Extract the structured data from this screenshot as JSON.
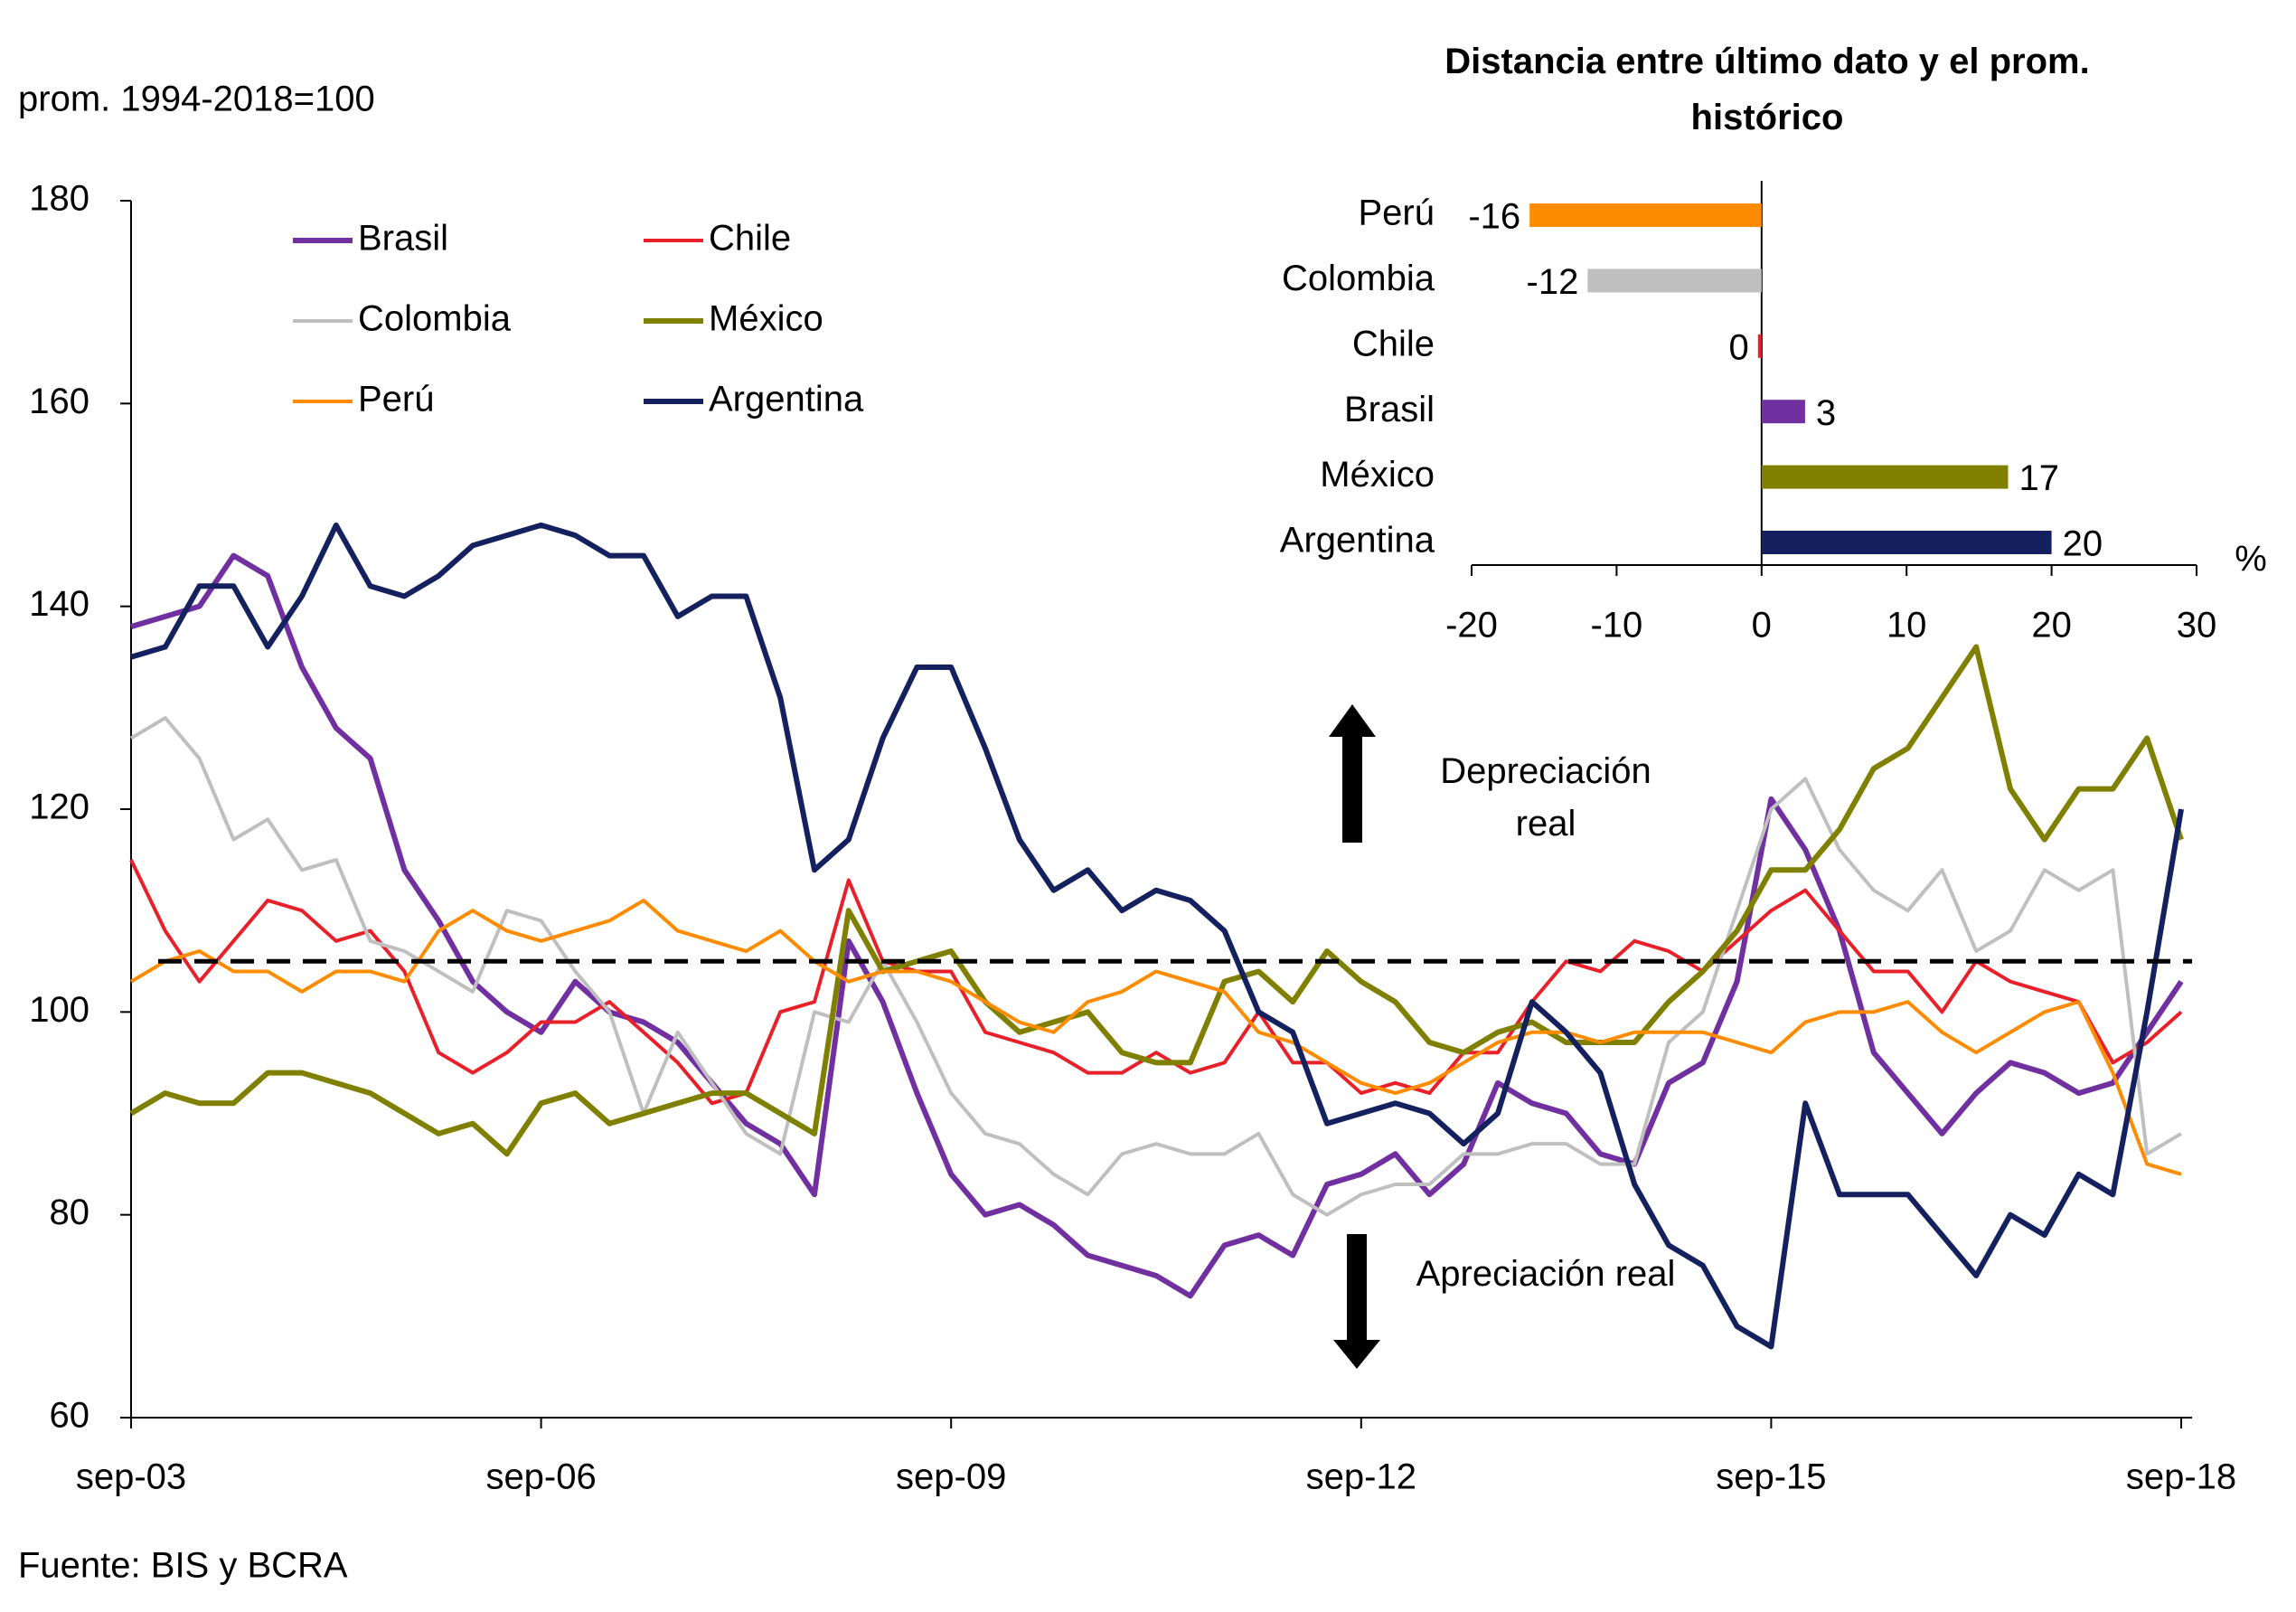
{
  "chart_data": [
    {
      "type": "line",
      "subtitle": "prom. 1994-2018=100",
      "source": "Fuente: BIS y BCRA",
      "annotations": [
        "Depreciación real",
        "Apreciación real"
      ],
      "hline": 105,
      "categories": [
        "sep-03",
        null,
        null,
        null,
        null,
        null,
        null,
        null,
        null,
        null,
        null,
        null,
        "sep-06",
        null,
        null,
        null,
        null,
        null,
        null,
        null,
        null,
        null,
        null,
        null,
        "sep-09",
        null,
        null,
        null,
        null,
        null,
        null,
        null,
        null,
        null,
        null,
        null,
        "sep-12",
        null,
        null,
        null,
        null,
        null,
        null,
        null,
        null,
        null,
        null,
        null,
        "sep-15",
        null,
        null,
        null,
        null,
        null,
        null,
        null,
        null,
        null,
        null,
        null,
        "sep-18"
      ],
      "ylim": [
        60,
        180
      ],
      "yticks": [
        60,
        80,
        100,
        120,
        140,
        160,
        180
      ],
      "series": [
        {
          "name": "Brasil",
          "color": "#7030a0",
          "values": [
            138,
            139,
            140,
            145,
            143,
            134,
            128,
            125,
            114,
            109,
            103,
            100,
            98,
            103,
            100,
            99,
            97,
            93,
            89,
            87,
            82,
            107,
            101,
            92,
            84,
            80,
            81,
            79,
            76,
            75,
            74,
            72,
            77,
            78,
            76,
            83,
            84,
            86,
            82,
            85,
            93,
            91,
            90,
            86,
            85,
            93,
            95,
            103,
            121,
            116,
            108,
            96,
            92,
            88,
            92,
            95,
            94,
            92,
            93,
            98,
            103
          ]
        },
        {
          "name": "Chile",
          "color": "#e8202a",
          "values": [
            115,
            108,
            103,
            107,
            111,
            110,
            107,
            108,
            104,
            96,
            94,
            96,
            99,
            99,
            101,
            98,
            95,
            91,
            92,
            100,
            101,
            113,
            105,
            104,
            104,
            98,
            97,
            96,
            94,
            94,
            96,
            94,
            95,
            100,
            95,
            95,
            92,
            93,
            92,
            96,
            96,
            101,
            105,
            104,
            107,
            106,
            104,
            107,
            110,
            112,
            108,
            104,
            104,
            100,
            105,
            103,
            102,
            101,
            95,
            97,
            100
          ]
        },
        {
          "name": "Colombia",
          "color": "#bfbfbf",
          "values": [
            127,
            129,
            125,
            117,
            119,
            114,
            115,
            107,
            106,
            104,
            102,
            110,
            109,
            104,
            100,
            90,
            98,
            93,
            88,
            86,
            100,
            99,
            105,
            99,
            92,
            88,
            87,
            84,
            82,
            86,
            87,
            86,
            86,
            88,
            82,
            80,
            82,
            83,
            83,
            86,
            86,
            87,
            87,
            85,
            85,
            97,
            100,
            110,
            120,
            123,
            116,
            112,
            110,
            114,
            106,
            108,
            114,
            112,
            114,
            86,
            88
          ]
        },
        {
          "name": "México",
          "color": "#7f7f00",
          "values": [
            90,
            92,
            91,
            91,
            94,
            94,
            93,
            92,
            90,
            88,
            89,
            86,
            91,
            92,
            89,
            90,
            91,
            92,
            92,
            90,
            88,
            110,
            104,
            105,
            106,
            101,
            98,
            99,
            100,
            96,
            95,
            95,
            103,
            104,
            101,
            106,
            103,
            101,
            97,
            96,
            98,
            99,
            97,
            97,
            97,
            101,
            104,
            108,
            114,
            114,
            118,
            124,
            126,
            131,
            136,
            122,
            117,
            122,
            122,
            127,
            117
          ]
        },
        {
          "name": "Perú",
          "color": "#ff8c00",
          "values": [
            103,
            105,
            106,
            104,
            104,
            102,
            104,
            104,
            103,
            108,
            110,
            108,
            107,
            108,
            109,
            111,
            108,
            107,
            106,
            108,
            105,
            103,
            104,
            104,
            103,
            101,
            99,
            98,
            101,
            102,
            104,
            103,
            102,
            98,
            97,
            95,
            93,
            92,
            93,
            95,
            97,
            98,
            98,
            97,
            98,
            98,
            98,
            97,
            96,
            99,
            100,
            100,
            101,
            98,
            96,
            98,
            100,
            101,
            94,
            85,
            84
          ]
        },
        {
          "name": "Argentina",
          "color": "#14215e",
          "values": [
            135,
            136,
            142,
            142,
            136,
            141,
            148,
            142,
            141,
            143,
            146,
            147,
            148,
            147,
            145,
            145,
            139,
            141,
            141,
            131,
            114,
            117,
            127,
            134,
            134,
            126,
            117,
            112,
            114,
            110,
            112,
            111,
            108,
            100,
            98,
            89,
            90,
            91,
            90,
            87,
            90,
            101,
            98,
            94,
            83,
            77,
            75,
            69,
            67,
            91,
            82,
            82,
            82,
            78,
            74,
            80,
            78,
            84,
            82,
            100,
            120
          ]
        }
      ]
    },
    {
      "type": "bar",
      "orientation": "horizontal",
      "title": "Distancia  entre último dato y el prom. histórico",
      "categories": [
        "Perú",
        "Colombia",
        "Chile",
        "Brasil",
        "México",
        "Argentina"
      ],
      "values": [
        -16,
        -12,
        0,
        3,
        17,
        20
      ],
      "colors": [
        "#ff8c00",
        "#bfbfbf",
        "#e8202a",
        "#7030a0",
        "#7f7f00",
        "#14215e"
      ],
      "xlim": [
        -20,
        30
      ],
      "xticks": [
        -20,
        -10,
        0,
        10,
        20,
        30
      ],
      "xlabel": "%"
    }
  ]
}
